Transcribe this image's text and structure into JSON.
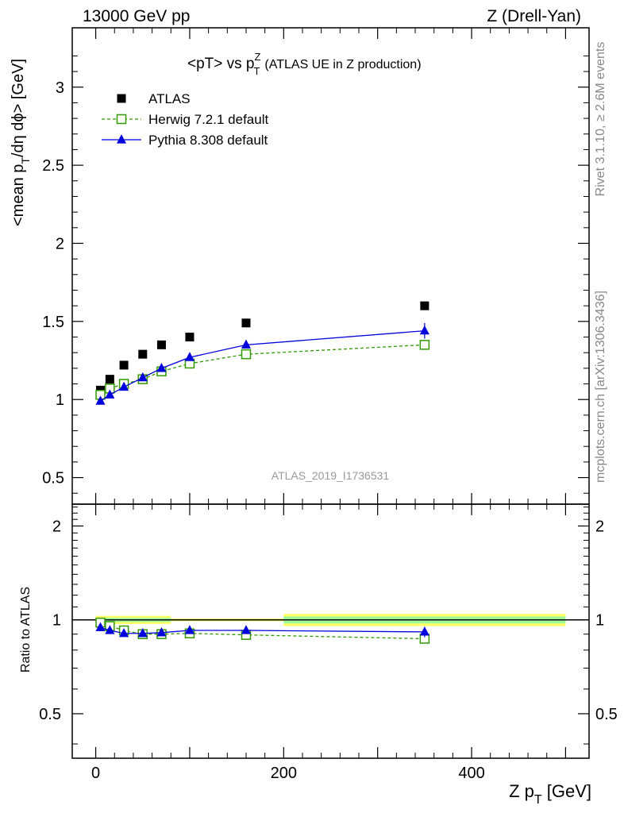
{
  "header": {
    "left": "13000 GeV pp",
    "right": "Z (Drell-Yan)"
  },
  "side_labels": {
    "rivet": "Rivet 3.1.10, ≥ 2.6M events",
    "mcplots": "mcplots.cern.ch [arXiv:1306.3436]"
  },
  "title": {
    "main": "<pT> vs p",
    "sup": "Z",
    "sub": "T",
    "suffix": "(ATLAS UE in Z production)"
  },
  "watermark": "ATLAS_2019_I1736531",
  "chart_data": [
    {
      "type": "scatter",
      "panel": "main",
      "ylabel_parts": [
        "<mean p",
        "T",
        "/dη dϕ> [GeV]"
      ],
      "xlim": [
        -25,
        525
      ],
      "ylim": [
        0.33,
        3.38
      ],
      "y_ticks": [
        0.5,
        1,
        1.5,
        2,
        2.5,
        3
      ],
      "y_tick_labels": [
        "0.5",
        "1",
        "1.5",
        "2",
        "2.5",
        "3"
      ],
      "legend_position": "top-left",
      "series": [
        {
          "name": "ATLAS",
          "color": "#000000",
          "marker": "square-filled",
          "line": "none",
          "x": [
            5,
            15,
            30,
            50,
            70,
            100,
            160,
            350
          ],
          "y": [
            1.06,
            1.13,
            1.22,
            1.29,
            1.35,
            1.4,
            1.49,
            1.6
          ]
        },
        {
          "name": "Herwig 7.2.1 default",
          "color": "#339900",
          "marker": "square-open",
          "line": "dashed",
          "x": [
            5,
            15,
            30,
            50,
            70,
            100,
            160,
            350
          ],
          "y": [
            1.03,
            1.07,
            1.1,
            1.13,
            1.18,
            1.23,
            1.29,
            1.35
          ],
          "err": [
            0,
            0,
            0,
            0,
            0,
            0.01,
            0.01,
            0.03
          ]
        },
        {
          "name": "Pythia 8.308 default",
          "color": "#0000dd",
          "marker": "triangle-filled",
          "line": "solid",
          "x": [
            5,
            15,
            30,
            50,
            70,
            100,
            160,
            350
          ],
          "y": [
            0.99,
            1.03,
            1.08,
            1.14,
            1.2,
            1.27,
            1.35,
            1.44
          ],
          "err": [
            0,
            0,
            0,
            0,
            0.01,
            0.01,
            0.02,
            0.05
          ]
        }
      ]
    },
    {
      "type": "scatter",
      "panel": "ratio",
      "ylabel": "Ratio to ATLAS",
      "xlabel_parts": [
        "Z p",
        "T",
        " [GeV]"
      ],
      "xlim": [
        -25,
        525
      ],
      "ylim": [
        0.36,
        2.35
      ],
      "log_y": true,
      "y_ticks": [
        0.5,
        1,
        2
      ],
      "y_tick_labels": [
        "0.5",
        "1",
        "2"
      ],
      "x_ticks": [
        0,
        200,
        400
      ],
      "x_tick_labels": [
        "0",
        "200",
        "400"
      ],
      "bands": [
        {
          "x0": 0,
          "x1": 80,
          "lo": 0.97,
          "hi": 1.03,
          "inner_lo": 0.985,
          "inner_hi": 1.015
        },
        {
          "x0": 80,
          "x1": 200,
          "lo": 0.99,
          "hi": 1.01,
          "inner_lo": 0.995,
          "inner_hi": 1.005
        },
        {
          "x0": 200,
          "x1": 500,
          "lo": 0.955,
          "hi": 1.045,
          "inner_lo": 0.975,
          "inner_hi": 1.025
        }
      ],
      "band_colors": {
        "outer": "#ffff66",
        "inner": "#99ff99"
      },
      "series": [
        {
          "name": "Herwig 7.2.1 default",
          "color": "#339900",
          "marker": "square-open",
          "line": "dashed",
          "x": [
            5,
            15,
            30,
            50,
            70,
            100,
            160,
            350
          ],
          "y": [
            0.98,
            0.955,
            0.925,
            0.9,
            0.9,
            0.905,
            0.895,
            0.87
          ],
          "err": [
            0,
            0,
            0,
            0,
            0,
            0,
            0,
            0.02
          ]
        },
        {
          "name": "Pythia 8.308 default",
          "color": "#0000dd",
          "marker": "triangle-filled",
          "line": "solid",
          "x": [
            5,
            15,
            30,
            50,
            70,
            100,
            160,
            350
          ],
          "y": [
            0.945,
            0.925,
            0.905,
            0.905,
            0.91,
            0.925,
            0.925,
            0.915
          ],
          "err": [
            0,
            0,
            0,
            0,
            0,
            0,
            0.01,
            0.035
          ]
        }
      ]
    }
  ]
}
